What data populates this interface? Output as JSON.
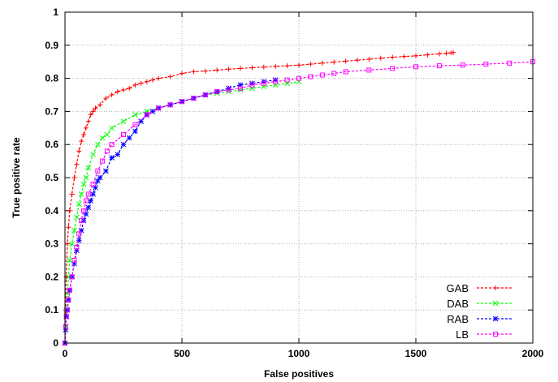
{
  "chart_data": {
    "type": "line",
    "xlabel": "False positives",
    "ylabel": "True positive rate",
    "xlim": [
      0,
      2000
    ],
    "ylim": [
      0,
      1
    ],
    "x_ticks": [
      "0",
      "500",
      "1000",
      "1500",
      "2000"
    ],
    "y_ticks": [
      "0",
      "0.1",
      "0.2",
      "0.3",
      "0.4",
      "0.5",
      "0.6",
      "0.7",
      "0.8",
      "0.9",
      "1"
    ],
    "grid": true,
    "legend_position": "bottom-right",
    "series": [
      {
        "name": "GAB",
        "color": "#ff0000",
        "marker": "plus",
        "x": [
          0,
          2,
          5,
          10,
          15,
          20,
          30,
          40,
          50,
          60,
          70,
          80,
          90,
          100,
          110,
          120,
          130,
          150,
          175,
          200,
          225,
          250,
          275,
          300,
          325,
          350,
          375,
          400,
          450,
          500,
          550,
          600,
          650,
          700,
          750,
          800,
          850,
          900,
          950,
          1000,
          1050,
          1100,
          1150,
          1200,
          1250,
          1300,
          1350,
          1400,
          1450,
          1500,
          1550,
          1600,
          1630,
          1650,
          1660
        ],
        "y": [
          0.0,
          0.1,
          0.2,
          0.3,
          0.35,
          0.4,
          0.45,
          0.5,
          0.54,
          0.58,
          0.61,
          0.63,
          0.65,
          0.67,
          0.69,
          0.7,
          0.71,
          0.72,
          0.74,
          0.75,
          0.76,
          0.765,
          0.77,
          0.78,
          0.785,
          0.79,
          0.795,
          0.8,
          0.805,
          0.815,
          0.82,
          0.822,
          0.825,
          0.828,
          0.83,
          0.832,
          0.834,
          0.836,
          0.838,
          0.84,
          0.843,
          0.846,
          0.849,
          0.852,
          0.855,
          0.858,
          0.861,
          0.864,
          0.866,
          0.868,
          0.871,
          0.874,
          0.876,
          0.877,
          0.878
        ]
      },
      {
        "name": "DAB",
        "color": "#00ff00",
        "marker": "cross",
        "x": [
          0,
          3,
          6,
          10,
          15,
          20,
          30,
          40,
          50,
          60,
          70,
          80,
          90,
          100,
          120,
          140,
          160,
          180,
          200,
          250,
          300,
          350,
          400,
          450,
          500,
          550,
          600,
          650,
          700,
          750,
          800,
          850,
          900,
          950,
          1000
        ],
        "y": [
          0.0,
          0.05,
          0.1,
          0.15,
          0.2,
          0.25,
          0.3,
          0.34,
          0.38,
          0.42,
          0.45,
          0.48,
          0.5,
          0.53,
          0.57,
          0.6,
          0.62,
          0.63,
          0.65,
          0.67,
          0.69,
          0.7,
          0.71,
          0.72,
          0.73,
          0.74,
          0.75,
          0.755,
          0.76,
          0.765,
          0.77,
          0.775,
          0.78,
          0.785,
          0.79
        ]
      },
      {
        "name": "RAB",
        "color": "#0000ff",
        "marker": "asterisk",
        "x": [
          0,
          3,
          6,
          10,
          15,
          20,
          30,
          40,
          50,
          60,
          70,
          80,
          90,
          100,
          110,
          120,
          130,
          140,
          150,
          175,
          200,
          225,
          250,
          275,
          300,
          325,
          350,
          375,
          400,
          450,
          500,
          550,
          600,
          650,
          700,
          750,
          800,
          850,
          900
        ],
        "y": [
          0.0,
          0.04,
          0.08,
          0.1,
          0.13,
          0.16,
          0.2,
          0.24,
          0.28,
          0.31,
          0.34,
          0.37,
          0.39,
          0.41,
          0.43,
          0.45,
          0.47,
          0.49,
          0.5,
          0.52,
          0.56,
          0.57,
          0.6,
          0.62,
          0.64,
          0.67,
          0.69,
          0.7,
          0.71,
          0.72,
          0.73,
          0.74,
          0.75,
          0.76,
          0.77,
          0.78,
          0.785,
          0.79,
          0.795
        ]
      },
      {
        "name": "LB",
        "color": "#ff00ff",
        "marker": "square",
        "x": [
          0,
          3,
          6,
          10,
          15,
          20,
          30,
          40,
          50,
          60,
          70,
          80,
          90,
          100,
          120,
          140,
          160,
          180,
          200,
          250,
          300,
          350,
          400,
          450,
          500,
          550,
          600,
          650,
          700,
          750,
          800,
          850,
          900,
          950,
          1000,
          1050,
          1100,
          1150,
          1200,
          1300,
          1400,
          1500,
          1600,
          1700,
          1800,
          1900,
          2000
        ],
        "y": [
          0.0,
          0.05,
          0.08,
          0.1,
          0.13,
          0.16,
          0.2,
          0.25,
          0.29,
          0.33,
          0.37,
          0.4,
          0.43,
          0.45,
          0.48,
          0.52,
          0.55,
          0.58,
          0.6,
          0.63,
          0.66,
          0.69,
          0.71,
          0.72,
          0.73,
          0.74,
          0.75,
          0.76,
          0.765,
          0.77,
          0.78,
          0.785,
          0.79,
          0.795,
          0.8,
          0.805,
          0.81,
          0.815,
          0.82,
          0.825,
          0.83,
          0.835,
          0.838,
          0.84,
          0.843,
          0.846,
          0.85
        ]
      }
    ]
  }
}
